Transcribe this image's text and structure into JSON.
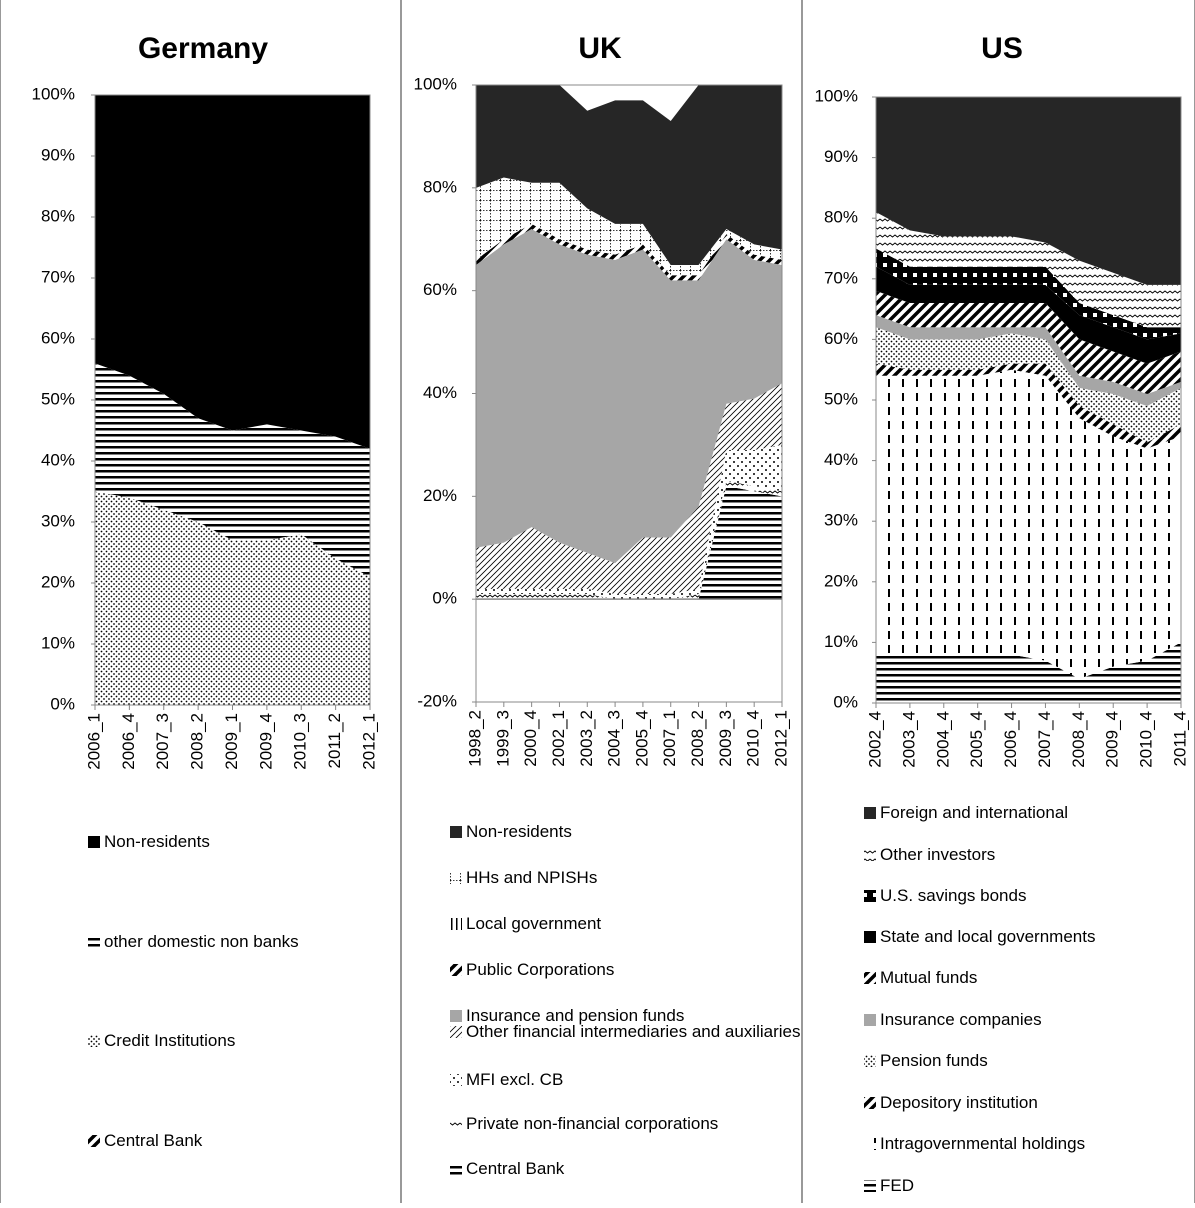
{
  "chart_data": [
    {
      "type": "stacked_area",
      "title": "Germany",
      "categories": [
        "2006_1",
        "2006_4",
        "2007_3",
        "2008_2",
        "2009_1",
        "2009_4",
        "2010_3",
        "2011_2",
        "2012_1"
      ],
      "series": [
        {
          "name": "Central Bank",
          "color": "#000000",
          "pattern": "thickdiag",
          "values": [
            0,
            0,
            0,
            0,
            0,
            0,
            0,
            0,
            0
          ]
        },
        {
          "name": "Credit Institutions",
          "color": "#000000",
          "pattern": "dots",
          "values": [
            35,
            34,
            32,
            30,
            27,
            27,
            28,
            24,
            21
          ]
        },
        {
          "name": "other domestic non banks",
          "color": "#000000",
          "pattern": "hlines",
          "values": [
            21,
            20,
            19,
            17,
            18,
            19,
            17,
            20,
            21
          ]
        },
        {
          "name": "Non-residents",
          "color": "#000000",
          "pattern": "solid",
          "values": [
            44,
            46,
            49,
            53,
            55,
            54,
            55,
            56,
            58
          ]
        }
      ],
      "ylim": [
        0,
        100
      ],
      "yticks": [
        {
          "value": 0,
          "label": "0%"
        },
        {
          "value": 10,
          "label": "10%"
        },
        {
          "value": 20,
          "label": "20%"
        },
        {
          "value": 30,
          "label": "30%"
        },
        {
          "value": 40,
          "label": "40%"
        },
        {
          "value": 50,
          "label": "50%"
        },
        {
          "value": 60,
          "label": "60%"
        },
        {
          "value": 70,
          "label": "70%"
        },
        {
          "value": 80,
          "label": "80%"
        },
        {
          "value": 90,
          "label": "90%"
        },
        {
          "value": 100,
          "label": "100%"
        }
      ]
    },
    {
      "type": "stacked_area",
      "title": "UK",
      "categories": [
        "1998_2",
        "1999_3",
        "2000_4",
        "2002_1",
        "2003_2",
        "2004_3",
        "2005_4",
        "2007_1",
        "2008_2",
        "2009_3",
        "2010_4",
        "2012_1"
      ],
      "series": [
        {
          "name": "Central Bank",
          "color": "#000000",
          "pattern": "hlines",
          "values": [
            0,
            0,
            0,
            0,
            0,
            0,
            0,
            0,
            0,
            22,
            21,
            20
          ]
        },
        {
          "name": "Private non-financial corporations",
          "color": "#000000",
          "pattern": "zigzag",
          "values": [
            1,
            1,
            1,
            1,
            1,
            0,
            0,
            0,
            1,
            1,
            1,
            1
          ]
        },
        {
          "name": "MFI excl. CB",
          "color": "#000000",
          "pattern": "sparsedots",
          "values": [
            1,
            1,
            1,
            1,
            1,
            1,
            1,
            1,
            1,
            6,
            7,
            9
          ]
        },
        {
          "name": "Other financial intermediaries and auxiliaries",
          "color": "#000000",
          "pattern": "diag",
          "values": [
            8,
            9,
            12,
            9,
            7,
            6,
            11,
            11,
            16,
            9,
            10,
            12
          ]
        },
        {
          "name": "Insurance and pension funds",
          "color": "#a6a6a6",
          "pattern": "solid",
          "values": [
            55,
            58,
            58,
            58,
            58,
            59,
            56,
            50,
            44,
            32,
            27,
            23
          ]
        },
        {
          "name": "Public Corporations",
          "color": "#000000",
          "pattern": "thickdiag",
          "values": [
            1,
            1,
            1,
            1,
            1,
            1,
            1,
            1,
            1,
            1,
            1,
            1
          ]
        },
        {
          "name": "Local government",
          "color": "#000000",
          "pattern": "vlines",
          "values": [
            0,
            0,
            0,
            0,
            0,
            0,
            0,
            0,
            0,
            0,
            0,
            0
          ]
        },
        {
          "name": "HHs and NPISHs",
          "color": "#000000",
          "pattern": "grid",
          "values": [
            14,
            12,
            8,
            11,
            8,
            6,
            4,
            2,
            2,
            1,
            2,
            2
          ]
        },
        {
          "name": "Non-residents",
          "color": "#262626",
          "pattern": "solid",
          "values": [
            20,
            18,
            19,
            19,
            19,
            24,
            24,
            28,
            35,
            28,
            31,
            32
          ]
        }
      ],
      "ylim": [
        -20,
        100
      ],
      "yticks": [
        {
          "value": -20,
          "label": "-20%"
        },
        {
          "value": 0,
          "label": "0%"
        },
        {
          "value": 20,
          "label": "20%"
        },
        {
          "value": 40,
          "label": "40%"
        },
        {
          "value": 60,
          "label": "60%"
        },
        {
          "value": 80,
          "label": "80%"
        },
        {
          "value": 100,
          "label": "100%"
        }
      ]
    },
    {
      "type": "stacked_area",
      "title": "US",
      "categories": [
        "2002_4",
        "2003_4",
        "2004_4",
        "2005_4",
        "2006_4",
        "2007_4",
        "2008_4",
        "2009_4",
        "2010_4",
        "2011_4"
      ],
      "series": [
        {
          "name": "FED",
          "color": "#000000",
          "pattern": "hlines",
          "values": [
            8,
            8,
            8,
            8,
            8,
            7,
            4,
            6,
            7,
            10
          ]
        },
        {
          "name": "Intragovernmental holdings",
          "color": "#000000",
          "pattern": "vdash",
          "values": [
            46,
            46,
            46,
            46,
            47,
            47,
            43,
            38,
            35,
            34
          ]
        },
        {
          "name": "Depository institution",
          "color": "#000000",
          "pattern": "thickdiag",
          "values": [
            2,
            1,
            1,
            1,
            1,
            2,
            2,
            2,
            1,
            2
          ]
        },
        {
          "name": "Pension funds",
          "color": "#000000",
          "pattern": "dots",
          "values": [
            6,
            5,
            5,
            5,
            5,
            4,
            3,
            5,
            6,
            6
          ]
        },
        {
          "name": "Insurance companies",
          "color": "#a6a6a6",
          "pattern": "solid",
          "values": [
            2,
            2,
            2,
            2,
            1,
            2,
            2,
            2,
            2,
            1
          ]
        },
        {
          "name": "Mutual funds",
          "color": "#000000",
          "pattern": "thickdiag",
          "values": [
            4,
            4,
            4,
            4,
            4,
            4,
            6,
            5,
            5,
            5
          ]
        },
        {
          "name": "State and local governments",
          "color": "#000000",
          "pattern": "solid",
          "values": [
            4,
            3,
            3,
            3,
            3,
            3,
            4,
            4,
            4,
            3
          ]
        },
        {
          "name": "U.S. savings bonds",
          "color": "#000000",
          "pattern": "checker",
          "values": [
            3,
            3,
            3,
            3,
            3,
            3,
            2,
            2,
            2,
            1
          ]
        },
        {
          "name": "Other investors",
          "color": "#000000",
          "pattern": "zigzag",
          "values": [
            6,
            6,
            5,
            5,
            5,
            4,
            7,
            7,
            7,
            7
          ]
        },
        {
          "name": "Foreign and international",
          "color": "#262626",
          "pattern": "solid",
          "values": [
            19,
            22,
            23,
            23,
            23,
            24,
            27,
            29,
            31,
            31
          ]
        }
      ],
      "ylim": [
        0,
        100
      ],
      "yticks": [
        {
          "value": 0,
          "label": "0%"
        },
        {
          "value": 10,
          "label": "10%"
        },
        {
          "value": 20,
          "label": "20%"
        },
        {
          "value": 30,
          "label": "30%"
        },
        {
          "value": 40,
          "label": "40%"
        },
        {
          "value": 50,
          "label": "50%"
        },
        {
          "value": 60,
          "label": "60%"
        },
        {
          "value": 70,
          "label": "70%"
        },
        {
          "value": 80,
          "label": "80%"
        },
        {
          "value": 90,
          "label": "90%"
        },
        {
          "value": 100,
          "label": "100%"
        }
      ]
    }
  ]
}
